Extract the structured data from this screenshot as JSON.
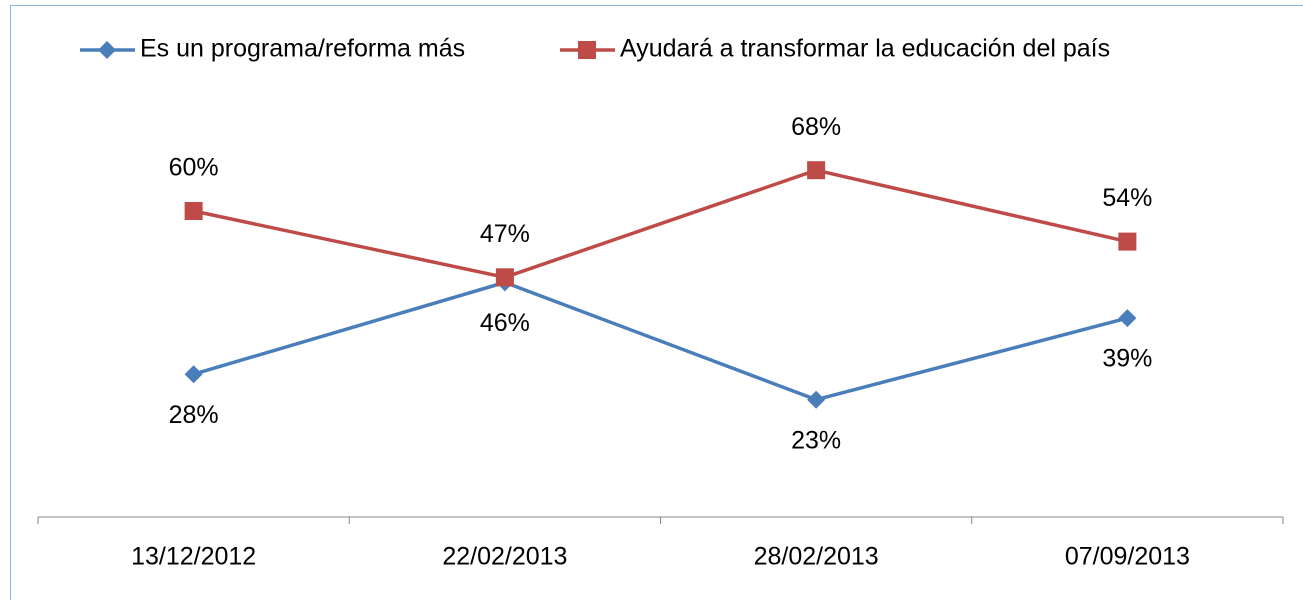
{
  "chart_data": {
    "type": "line",
    "categories": [
      "13/12/2012",
      "22/02/2013",
      "28/02/2013",
      "07/09/2013"
    ],
    "series": [
      {
        "name": "Es un programa/reforma más",
        "color": "#4a7ebb",
        "marker": "diamond",
        "values": [
          28,
          46,
          23,
          39
        ],
        "value_labels": [
          "28%",
          "46%",
          "23%",
          "39%"
        ],
        "label_position": "below"
      },
      {
        "name": "Ayudará a transformar la educación del país",
        "color": "#be4b48",
        "marker": "square",
        "values": [
          60,
          47,
          68,
          54
        ],
        "value_labels": [
          "60%",
          "47%",
          "68%",
          "54%"
        ],
        "label_position": "above"
      }
    ],
    "ylim": [
      0,
      80
    ],
    "legend": "top"
  }
}
